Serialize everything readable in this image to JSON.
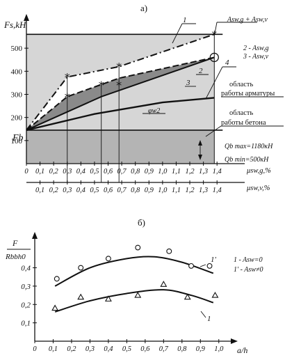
{
  "chart_data": [
    {
      "panel": "a)",
      "type": "line",
      "y_label": "Fs,kH",
      "y_ticks": [
        100,
        200,
        300,
        400,
        500
      ],
      "ylim": [
        0,
        600
      ],
      "x_ticks": [
        "0",
        "0,1",
        "0,2",
        "0,3",
        "0,4",
        "0,5",
        "0,6",
        "0,7",
        "0,8",
        "0,9",
        "1,0",
        "1,1",
        "1,2",
        "1,3",
        "1,4"
      ],
      "x_axis1_label": "μsw,g,%",
      "x_axis2_label": "μsw,v,%",
      "xlim": [
        0,
        1.45
      ],
      "fb_label": "Fb",
      "fb_value": 145,
      "cap_value": 560,
      "series": [
        {
          "callout": "1",
          "x": [
            0,
            0.3,
            0.68,
            1.38
          ],
          "y": [
            145,
            375,
            420,
            560
          ]
        },
        {
          "callout": "2",
          "x": [
            0,
            0.3,
            0.68,
            1.38
          ],
          "y": [
            145,
            290,
            370,
            460
          ]
        },
        {
          "callout": "3",
          "x": [
            0,
            0.55,
            1.38
          ],
          "y": [
            145,
            290,
            460
          ]
        },
        {
          "callout": "4",
          "name": "φw2",
          "x": [
            0,
            0.5,
            1.0,
            1.38
          ],
          "y": [
            145,
            215,
            265,
            285
          ]
        }
      ],
      "star_points": [
        {
          "x": 0.3,
          "y": 375
        },
        {
          "x": 0.3,
          "y": 290
        },
        {
          "x": 0.55,
          "y": 340
        },
        {
          "x": 0.68,
          "y": 420
        },
        {
          "x": 0.68,
          "y": 340
        },
        {
          "x": 1.38,
          "y": 560
        }
      ],
      "circle_point": {
        "x": 1.38,
        "y": 460
      },
      "callouts": {
        "top": "Asw,g + Asw,v",
        "legend_2": "2 - Asw,g",
        "legend_3": "3 - Asw,v",
        "area_rebar_1": "область",
        "area_rebar_2": "работы арматуры",
        "area_concrete_1": "область",
        "area_concrete_2": "работы бетона",
        "qmax": "Qb max=1180кН",
        "qmin": "Qb min=500кН",
        "phi": "φw2"
      }
    },
    {
      "panel": "б)",
      "type": "scatter",
      "y_label_num": "F",
      "y_label_den": "Rbbh0",
      "y_ticks": [
        "0,1",
        "0,2",
        "0,3",
        "0,4"
      ],
      "ylim": [
        0,
        0.55
      ],
      "x_ticks": [
        "0",
        "0,1",
        "0,2",
        "0,3",
        "0,4",
        "0,5",
        "0,6",
        "0,7",
        "0,8",
        "0,9",
        "1,0"
      ],
      "xlabel": "a/h",
      "xlim": [
        0,
        1.05
      ],
      "legend": [
        "1 - Asw=0",
        "1' - Asw≠0"
      ],
      "series": [
        {
          "curve_label": "1'",
          "marker": "circle",
          "points_x": [
            0.12,
            0.25,
            0.4,
            0.56,
            0.73,
            0.85,
            0.95
          ],
          "points_y": [
            0.34,
            0.4,
            0.45,
            0.51,
            0.49,
            0.41,
            0.41
          ],
          "curve_x": [
            0.11,
            0.3,
            0.5,
            0.65,
            0.8,
            0.97
          ],
          "curve_y": [
            0.3,
            0.4,
            0.45,
            0.46,
            0.43,
            0.37
          ]
        },
        {
          "curve_label": "1",
          "marker": "triangle",
          "points_x": [
            0.11,
            0.25,
            0.4,
            0.56,
            0.7,
            0.83,
            0.98
          ],
          "points_y": [
            0.18,
            0.24,
            0.23,
            0.25,
            0.31,
            0.24,
            0.25
          ],
          "curve_x": [
            0.11,
            0.3,
            0.5,
            0.7,
            0.85,
            0.97
          ],
          "curve_y": [
            0.16,
            0.22,
            0.26,
            0.28,
            0.25,
            0.21
          ]
        }
      ]
    }
  ]
}
